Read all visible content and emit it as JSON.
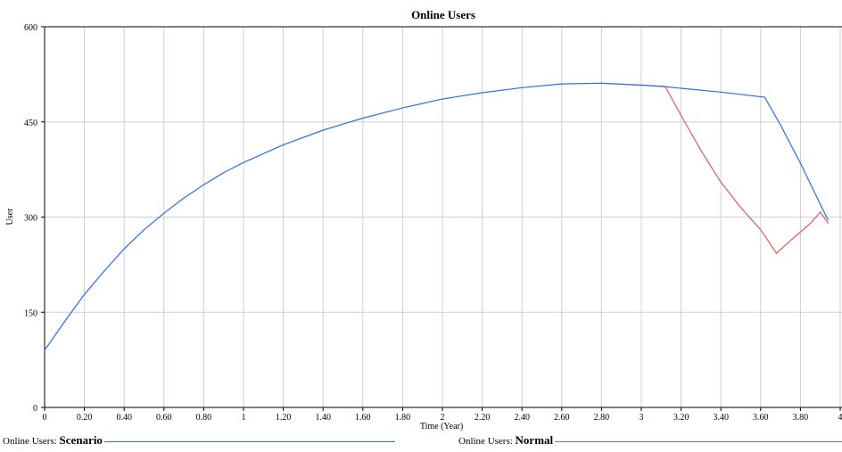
{
  "chart_data": {
    "type": "line",
    "title": "Online Users",
    "xlabel": "Time (Year)",
    "ylabel": "User",
    "xlim": [
      0,
      3.94
    ],
    "ylim": [
      0,
      600
    ],
    "x_ticks": [
      {
        "v": 0,
        "label": "0"
      },
      {
        "v": 0.2,
        "label": "0.20"
      },
      {
        "v": 0.4,
        "label": "0.40"
      },
      {
        "v": 0.6,
        "label": "0.60"
      },
      {
        "v": 0.8,
        "label": "0.80"
      },
      {
        "v": 1,
        "label": "1"
      },
      {
        "v": 1.2,
        "label": "1.20"
      },
      {
        "v": 1.4,
        "label": "1.40"
      },
      {
        "v": 1.6,
        "label": "1.60"
      },
      {
        "v": 1.8,
        "label": "1.80"
      },
      {
        "v": 2,
        "label": "2"
      },
      {
        "v": 2.2,
        "label": "2.20"
      },
      {
        "v": 2.4,
        "label": "2.40"
      },
      {
        "v": 2.6,
        "label": "2.60"
      },
      {
        "v": 2.8,
        "label": "2.80"
      },
      {
        "v": 3,
        "label": "3"
      },
      {
        "v": 3.2,
        "label": "3.20"
      },
      {
        "v": 3.4,
        "label": "3.40"
      },
      {
        "v": 3.6,
        "label": "3.60"
      },
      {
        "v": 3.8,
        "label": "3.80"
      },
      {
        "v": 4,
        "label": "4"
      }
    ],
    "y_ticks": [
      {
        "v": 0,
        "label": "0"
      },
      {
        "v": 150,
        "label": "150"
      },
      {
        "v": 300,
        "label": "300"
      },
      {
        "v": 450,
        "label": "450"
      },
      {
        "v": 600,
        "label": "600"
      }
    ],
    "grid": true,
    "legend_position": "bottom",
    "series": [
      {
        "name": "Scenario",
        "legend_prefix": "Online Users: ",
        "color": "#2a6fe8",
        "points": [
          [
            0,
            90
          ],
          [
            0.1,
            135
          ],
          [
            0.2,
            178
          ],
          [
            0.3,
            215
          ],
          [
            0.4,
            250
          ],
          [
            0.5,
            280
          ],
          [
            0.6,
            306
          ],
          [
            0.7,
            330
          ],
          [
            0.8,
            351
          ],
          [
            0.9,
            370
          ],
          [
            1.0,
            386
          ],
          [
            1.2,
            414
          ],
          [
            1.4,
            437
          ],
          [
            1.6,
            456
          ],
          [
            1.8,
            472
          ],
          [
            2.0,
            486
          ],
          [
            2.2,
            496
          ],
          [
            2.4,
            504
          ],
          [
            2.6,
            510
          ],
          [
            2.8,
            511
          ],
          [
            3.0,
            508
          ],
          [
            3.1,
            506
          ],
          [
            3.2,
            503
          ],
          [
            3.4,
            497
          ],
          [
            3.62,
            489
          ],
          [
            3.7,
            445
          ],
          [
            3.8,
            385
          ],
          [
            3.9,
            320
          ],
          [
            3.94,
            295
          ]
        ]
      },
      {
        "name": "Normal",
        "legend_prefix": "Online Users: ",
        "color": "#e05a5a",
        "points": [
          [
            2.8,
            511
          ],
          [
            3.0,
            508
          ],
          [
            3.12,
            506
          ],
          [
            3.2,
            460
          ],
          [
            3.3,
            405
          ],
          [
            3.4,
            355
          ],
          [
            3.5,
            315
          ],
          [
            3.6,
            280
          ],
          [
            3.68,
            243
          ],
          [
            3.75,
            263
          ],
          [
            3.85,
            290
          ],
          [
            3.9,
            308
          ],
          [
            3.94,
            290
          ]
        ]
      }
    ]
  }
}
